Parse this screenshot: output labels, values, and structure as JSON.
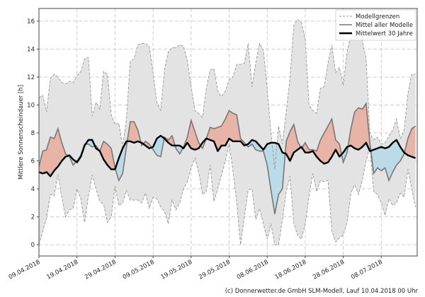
{
  "chart_data": {
    "type": "area",
    "title": "",
    "xlabel": "",
    "ylabel": "Mittlere Sonnenscheindauer [h]",
    "ylim": [
      -0.8,
      16.9
    ],
    "yticks": [
      0,
      2,
      4,
      6,
      8,
      10,
      12,
      14,
      16
    ],
    "xticks": [
      "09.04.2018",
      "19.04.2018",
      "29.04.2018",
      "09.05.2018",
      "19.05.2018",
      "29.05.2018",
      "08.06.2018",
      "18.06.2018",
      "28.06.2018",
      "08.07.2018"
    ],
    "grid": true,
    "legend_position": "top-right",
    "colors": {
      "band": "#e3e3e3",
      "bound": "#999999",
      "mean": "#777777",
      "climate": "#000000",
      "above": "#e8b4a8",
      "below": "#bcdbe8"
    },
    "x": [
      "09.04.2018",
      "10.04.2018",
      "11.04.2018",
      "12.04.2018",
      "13.04.2018",
      "14.04.2018",
      "15.04.2018",
      "16.04.2018",
      "17.04.2018",
      "18.04.2018",
      "19.04.2018",
      "20.04.2018",
      "21.04.2018",
      "22.04.2018",
      "23.04.2018",
      "24.04.2018",
      "25.04.2018",
      "26.04.2018",
      "27.04.2018",
      "28.04.2018",
      "29.04.2018",
      "30.04.2018",
      "01.05.2018",
      "02.05.2018",
      "03.05.2018",
      "04.05.2018",
      "05.05.2018",
      "06.05.2018",
      "07.05.2018",
      "08.05.2018",
      "09.05.2018",
      "10.05.2018",
      "11.05.2018",
      "12.05.2018",
      "13.05.2018",
      "14.05.2018",
      "15.05.2018",
      "16.05.2018",
      "17.05.2018",
      "18.05.2018",
      "19.05.2018",
      "20.05.2018",
      "21.05.2018",
      "22.05.2018",
      "23.05.2018",
      "24.05.2018",
      "25.05.2018",
      "26.05.2018",
      "27.05.2018",
      "28.05.2018",
      "29.05.2018",
      "30.05.2018",
      "31.05.2018",
      "01.06.2018",
      "02.06.2018",
      "03.06.2018",
      "04.06.2018",
      "05.06.2018",
      "06.06.2018",
      "07.06.2018",
      "08.06.2018",
      "09.06.2018",
      "10.06.2018",
      "11.06.2018",
      "12.06.2018",
      "13.06.2018",
      "14.06.2018",
      "15.06.2018",
      "16.06.2018",
      "17.06.2018",
      "18.06.2018",
      "19.06.2018",
      "20.06.2018",
      "21.06.2018",
      "22.06.2018",
      "23.06.2018",
      "24.06.2018",
      "25.06.2018",
      "26.06.2018",
      "27.06.2018",
      "28.06.2018",
      "29.06.2018",
      "30.06.2018",
      "01.07.2018",
      "02.07.2018",
      "03.07.2018",
      "04.07.2018",
      "05.07.2018",
      "06.07.2018",
      "07.07.2018",
      "08.07.2018",
      "09.07.2018",
      "10.07.2018",
      "11.07.2018",
      "12.07.2018",
      "13.07.2018",
      "14.07.2018",
      "15.07.2018",
      "16.07.2018",
      "17.07.2018"
    ],
    "series": [
      {
        "name": "Modellgrenzen",
        "role": "upper",
        "values": [
          10.5,
          10.7,
          9.5,
          11.9,
          12.2,
          12.0,
          11.6,
          11.5,
          11.7,
          11.6,
          12.1,
          12.4,
          13.3,
          13.4,
          9.2,
          10.2,
          9.7,
          12.4,
          12.2,
          9.3,
          8.6,
          8.7,
          7.0,
          9.0,
          13.1,
          13.3,
          14.3,
          14.4,
          14.4,
          14.2,
          12.3,
          10.2,
          9.6,
          12.5,
          13.8,
          14.1,
          14.1,
          14.3,
          14.2,
          13.2,
          11.3,
          9.6,
          9.4,
          9.1,
          11.2,
          12.5,
          12.6,
          11.0,
          10.6,
          11.0,
          11.8,
          12.0,
          12.9,
          12.9,
          13.0,
          14.4,
          11.3,
          13.0,
          14.4,
          13.9,
          11.2,
          8.0,
          5.4,
          8.5,
          7.2,
          9.5,
          11.9,
          15.7,
          16.1,
          15.9,
          14.7,
          10.0,
          9.6,
          9.4,
          11.2,
          11.3,
          13.0,
          14.3,
          12.3,
          12.7,
          11.4,
          13.8,
          15.0,
          15.0,
          15.0,
          14.6,
          13.3,
          8.0,
          7.5,
          7.7,
          7.2,
          7.3,
          7.8,
          8.2,
          9.0,
          7.6,
          8.2,
          10.8,
          12.2,
          12.2
        ]
      },
      {
        "name": "Modellgrenzen",
        "role": "lower",
        "values": [
          0.0,
          1.0,
          1.9,
          3.6,
          3.5,
          5.0,
          3.4,
          2.0,
          2.5,
          2.6,
          4.0,
          3.3,
          1.6,
          3.5,
          5.0,
          4.0,
          3.1,
          2.9,
          1.6,
          2.0,
          4.2,
          2.8,
          3.0,
          3.9,
          3.2,
          3.2,
          3.2,
          3.0,
          3.7,
          2.6,
          3.4,
          3.3,
          2.7,
          2.4,
          1.5,
          3.2,
          2.5,
          3.0,
          4.0,
          4.5,
          5.5,
          6.2,
          5.2,
          3.6,
          3.8,
          5.7,
          3.1,
          4.0,
          5.0,
          6.0,
          7.2,
          5.3,
          3.0,
          0.0,
          2.0,
          3.9,
          4.0,
          1.8,
          2.6,
          1.5,
          0.4,
          1.5,
          0.0,
          0.0,
          1.8,
          3.8,
          4.9,
          1.5,
          0.7,
          0.4,
          1.5,
          3.5,
          5.1,
          3.8,
          4.6,
          4.5,
          4.6,
          1.0,
          0.2,
          0.5,
          0.7,
          1.6,
          3.7,
          4.3,
          3.6,
          4.6,
          6.0,
          7.0,
          3.8,
          3.6,
          3.0,
          2.1,
          3.3,
          2.8,
          3.0,
          3.7,
          3.4,
          5.4,
          4.0,
          2.7
        ]
      },
      {
        "name": "Mittel aller Modelle",
        "values": [
          5.6,
          6.7,
          6.8,
          7.7,
          7.6,
          8.3,
          7.3,
          6.5,
          6.3,
          5.7,
          6.0,
          6.4,
          7.2,
          7.2,
          7.0,
          7.1,
          6.7,
          7.4,
          7.2,
          6.9,
          5.5,
          4.6,
          5.1,
          7.0,
          8.8,
          8.8,
          8.2,
          7.1,
          7.4,
          7.2,
          6.8,
          6.4,
          6.3,
          7.7,
          7.5,
          7.8,
          6.9,
          6.5,
          7.0,
          7.7,
          8.9,
          8.1,
          7.3,
          6.9,
          7.6,
          8.4,
          8.3,
          8.4,
          8.5,
          9.0,
          9.6,
          9.4,
          9.3,
          7.6,
          7.3,
          7.0,
          7.2,
          6.8,
          6.7,
          6.7,
          5.7,
          3.9,
          2.2,
          3.6,
          4.0,
          7.4,
          8.1,
          8.6,
          7.4,
          6.9,
          7.3,
          6.8,
          6.8,
          6.7,
          7.5,
          8.0,
          8.5,
          9.0,
          7.5,
          7.2,
          5.9,
          6.6,
          8.3,
          9.5,
          9.8,
          9.7,
          10.1,
          7.3,
          5.1,
          5.5,
          5.3,
          5.5,
          4.6,
          5.2,
          5.7,
          6.0,
          6.5,
          7.6,
          8.3,
          8.5
        ]
      },
      {
        "name": "Mittelwert 30 Jahre",
        "values": [
          5.2,
          5.1,
          5.2,
          4.9,
          5.3,
          5.6,
          6.0,
          6.3,
          6.4,
          6.1,
          5.9,
          6.3,
          7.1,
          7.5,
          7.5,
          6.9,
          6.7,
          6.1,
          5.7,
          5.4,
          5.4,
          6.2,
          6.9,
          7.4,
          7.4,
          7.3,
          7.4,
          7.3,
          7.1,
          6.9,
          7.0,
          7.6,
          7.8,
          7.6,
          7.3,
          7.1,
          7.1,
          7.1,
          6.9,
          7.3,
          6.9,
          6.8,
          6.9,
          7.3,
          7.6,
          7.5,
          7.4,
          6.7,
          7.1,
          7.1,
          7.6,
          7.4,
          7.4,
          7.4,
          7.1,
          7.2,
          7.5,
          7.4,
          7.1,
          6.8,
          7.2,
          7.3,
          7.3,
          7.2,
          6.6,
          6.5,
          6.0,
          6.6,
          6.8,
          7.0,
          6.6,
          6.6,
          6.7,
          6.3,
          6.0,
          5.8,
          5.9,
          6.3,
          6.8,
          6.3,
          6.6,
          7.0,
          7.1,
          6.9,
          6.8,
          7.0,
          7.3,
          6.7,
          6.8,
          6.9,
          7.0,
          6.9,
          7.0,
          7.3,
          7.5,
          7.0,
          6.6,
          6.4,
          6.3,
          6.2
        ]
      }
    ],
    "legend": [
      "Modellgrenzen",
      "Mittel aller Modelle",
      "Mittelwert 30 Jahre"
    ]
  },
  "footer": "(c) Donnerwetter.de GmbH SLM-Modell, Lauf 10.04.2018 00 Uhr"
}
